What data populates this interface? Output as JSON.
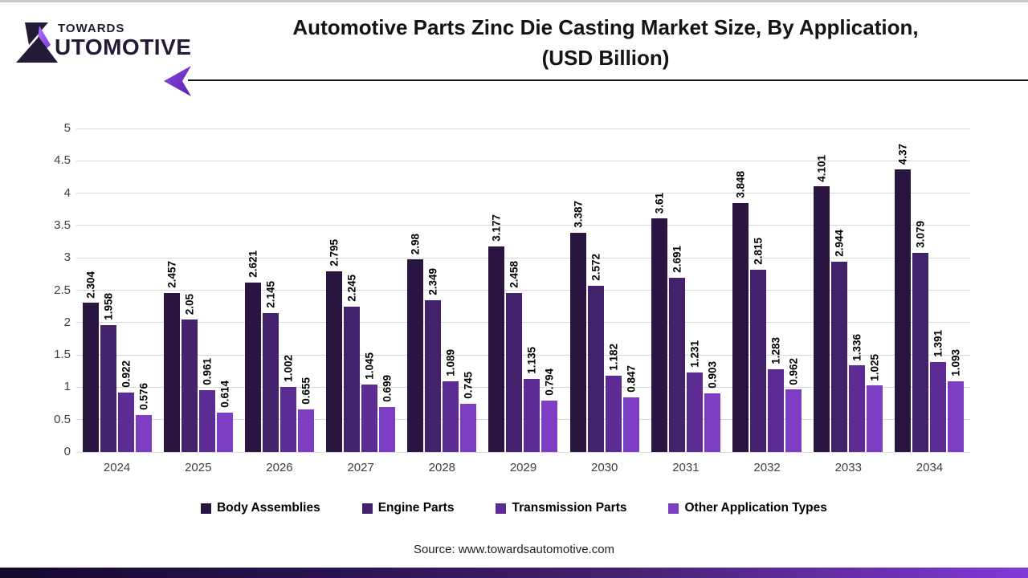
{
  "page": {
    "title_line1": "Automotive Parts Zinc Die Casting Market Size, By Application,",
    "title_line2": "(USD Billion)",
    "source": "Source: www.towardsautomotive.com"
  },
  "logo": {
    "top_text": "TOWARDS",
    "bottom_text": "UTOMOTIVE",
    "full_name": "Towards Automotive",
    "dark_color": "#241a36",
    "accent_color": "#9b59f0"
  },
  "header": {
    "arrow_color_start": "#8b4be0",
    "arrow_color_end": "#5a1fae",
    "line_color": "#141414"
  },
  "chart_data": {
    "type": "bar",
    "title": "Automotive Parts Zinc Die Casting Market Size, By Application, (USD Billion)",
    "categories": [
      "2024",
      "2025",
      "2026",
      "2027",
      "2028",
      "2029",
      "2030",
      "2031",
      "2032",
      "2033",
      "2034"
    ],
    "series": [
      {
        "name": "Body Assemblies",
        "color": "#2a1540",
        "values": [
          2.304,
          2.457,
          2.621,
          2.795,
          2.98,
          3.177,
          3.387,
          3.61,
          3.848,
          4.101,
          4.37
        ]
      },
      {
        "name": "Engine Parts",
        "color": "#41226b",
        "values": [
          1.958,
          2.05,
          2.145,
          2.245,
          2.349,
          2.458,
          2.572,
          2.691,
          2.815,
          2.944,
          3.079
        ]
      },
      {
        "name": "Transmission Parts",
        "color": "#5c2c94",
        "values": [
          0.922,
          0.961,
          1.002,
          1.045,
          1.089,
          1.135,
          1.182,
          1.231,
          1.283,
          1.336,
          1.391
        ]
      },
      {
        "name": "Other Application Types",
        "color": "#7d3ec4",
        "values": [
          0.576,
          0.614,
          0.655,
          0.699,
          0.745,
          0.794,
          0.847,
          0.903,
          0.962,
          1.025,
          1.093
        ]
      }
    ],
    "xlabel": "",
    "ylabel": "",
    "ylim": [
      0,
      5
    ],
    "ytick_step": 0.5,
    "yticks": [
      "0",
      "0.5",
      "1",
      "1.5",
      "2",
      "2.5",
      "3",
      "3.5",
      "4",
      "4.5",
      "5"
    ],
    "grid": true,
    "gridline_color": "#d9d9d9",
    "legend_position": "bottom",
    "value_labels": "rotated-90-above-bars"
  }
}
